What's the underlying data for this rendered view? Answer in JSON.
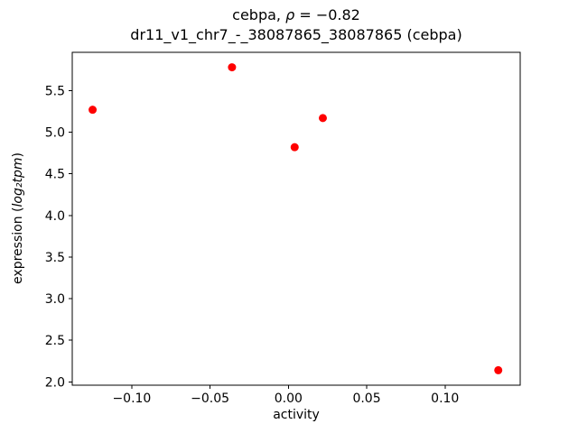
{
  "title": {
    "line1_prefix": "cebpa, ",
    "line1_math": "ρ",
    "line1_suffix": " = −0.82",
    "line2": "dr11_v1_chr7_-_38087865_38087865 (cebpa)"
  },
  "labels": {
    "xlabel": "activity",
    "ylabel_prefix": "expression (",
    "ylabel_math": "log₂tpm",
    "ylabel_suffix": ")"
  },
  "chart_data": {
    "type": "scatter",
    "title": "cebpa, ρ = −0.82",
    "subtitle": "dr11_v1_chr7_-_38087865_38087865 (cebpa)",
    "xlabel": "activity",
    "ylabel": "expression (log₂tpm)",
    "marker_color": "#ff0000",
    "marker_radius": 4.5,
    "grid": false,
    "legend_position": "none",
    "xlim": [
      -0.138,
      0.148
    ],
    "ylim": [
      1.96,
      5.96
    ],
    "xticks": [
      -0.1,
      -0.05,
      0.0,
      0.05,
      0.1
    ],
    "yticks": [
      2.0,
      2.5,
      3.0,
      3.5,
      4.0,
      4.5,
      5.0,
      5.5
    ],
    "points": [
      {
        "x": -0.125,
        "y": 5.27
      },
      {
        "x": -0.036,
        "y": 5.78
      },
      {
        "x": 0.004,
        "y": 4.82
      },
      {
        "x": 0.022,
        "y": 5.17
      },
      {
        "x": 0.134,
        "y": 2.14
      }
    ]
  }
}
